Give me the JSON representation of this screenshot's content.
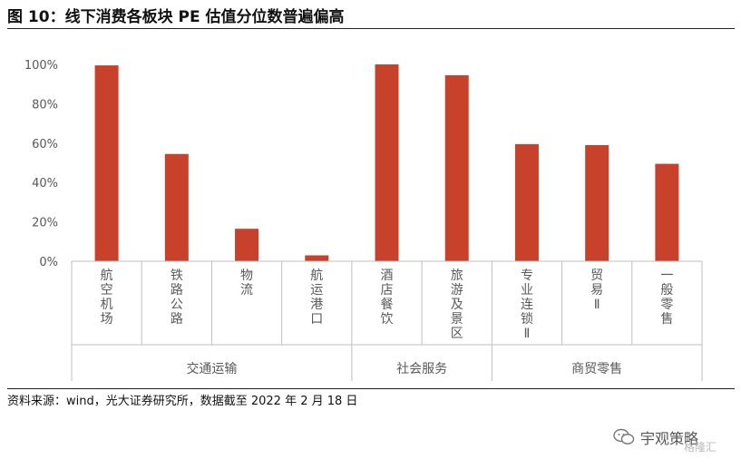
{
  "title": "图 10：线下消费各板块 PE 估值分位数普遍偏高",
  "source": "资料来源：wind，光大证券研究所，数据截至 2022 年 2 月 18 日",
  "watermark": {
    "text": "宇观策略",
    "logo_text": "格隆汇"
  },
  "colors": {
    "bar": "#C8412A",
    "axis": "#BFBFBF",
    "text": "#595959"
  },
  "chart_data": {
    "type": "bar",
    "title": "",
    "xlabel": "",
    "ylabel": "",
    "ylim": [
      0,
      100
    ],
    "yticks": [
      "0%",
      "20%",
      "40%",
      "60%",
      "80%",
      "100%"
    ],
    "grid": false,
    "categories": [
      "航空机场",
      "铁路公路",
      "物流",
      "航运港口",
      "酒店餐饮",
      "旅游及景区",
      "专业连锁Ⅱ",
      "贸易Ⅱ",
      "一般零售"
    ],
    "values": [
      99.5,
      54.5,
      16.5,
      3,
      100,
      94.5,
      59.5,
      59,
      49.5
    ],
    "groups": [
      {
        "label": "交通运输",
        "count": 4
      },
      {
        "label": "社会服务",
        "count": 2
      },
      {
        "label": "商贸零售",
        "count": 3
      }
    ]
  }
}
